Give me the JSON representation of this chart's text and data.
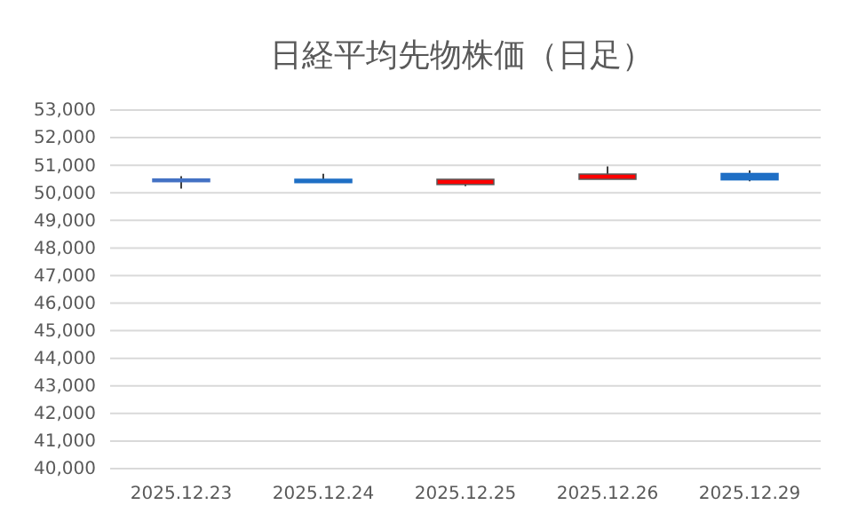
{
  "chart_data": {
    "type": "candlestick",
    "title": "日経平均先物株価（日足）",
    "categories": [
      "2025.12.23",
      "2025.12.24",
      "2025.12.25",
      "2025.12.26",
      "2025.12.29"
    ],
    "ohlc": [
      [
        50450,
        50600,
        50150,
        50500
      ],
      [
        50370,
        50690,
        50370,
        50490
      ],
      [
        50490,
        50490,
        50240,
        50300
      ],
      [
        50680,
        50960,
        50490,
        50490
      ],
      [
        50470,
        50810,
        50420,
        50700
      ]
    ],
    "colors": [
      "#4472c4",
      "#1f6fc5",
      "#ff0000",
      "#ff0000",
      "#1f6fc5"
    ],
    "ylim": [
      40000,
      53000
    ],
    "yticks": [
      {
        "value": 40000,
        "label": "40,000"
      },
      {
        "value": 41000,
        "label": "41,000"
      },
      {
        "value": 42000,
        "label": "42,000"
      },
      {
        "value": 43000,
        "label": "43,000"
      },
      {
        "value": 44000,
        "label": "44,000"
      },
      {
        "value": 45000,
        "label": "45,000"
      },
      {
        "value": 46000,
        "label": "46,000"
      },
      {
        "value": 47000,
        "label": "47,000"
      },
      {
        "value": 48000,
        "label": "48,000"
      },
      {
        "value": 49000,
        "label": "49,000"
      },
      {
        "value": 50000,
        "label": "50,000"
      },
      {
        "value": 51000,
        "label": "51,000"
      },
      {
        "value": 52000,
        "label": "52,000"
      },
      {
        "value": 53000,
        "label": "53,000"
      }
    ],
    "grid": "y"
  }
}
